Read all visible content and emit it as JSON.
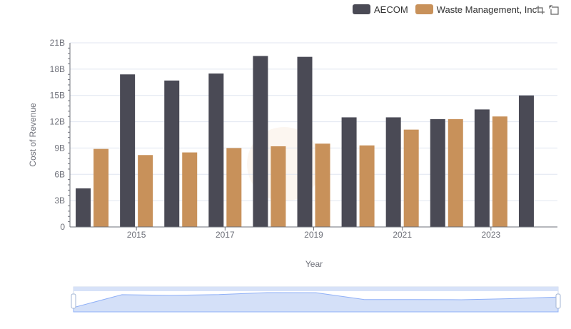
{
  "chart_data": {
    "type": "bar",
    "xlabel": "Year",
    "ylabel": "Cost of Revenue",
    "categories": [
      "2014",
      "2015",
      "2016",
      "2017",
      "2018",
      "2019",
      "2020",
      "2021",
      "2022",
      "2023",
      "2024"
    ],
    "x_tick_labels": [
      "2015",
      "2017",
      "2019",
      "2021",
      "2023"
    ],
    "y_tick_labels": [
      "0",
      "3B",
      "6B",
      "9B",
      "12B",
      "15B",
      "18B",
      "21B"
    ],
    "ylim": [
      0,
      21
    ],
    "y_unit": "billions",
    "grid": true,
    "legend_position": "top-right",
    "series": [
      {
        "name": "AECOM",
        "color": "#4a4a55",
        "values": [
          4.4,
          17.4,
          16.7,
          17.5,
          19.5,
          19.4,
          12.5,
          12.5,
          12.3,
          13.4,
          15.0
        ]
      },
      {
        "name": "Waste Management, Inc.",
        "color": "#c8915a",
        "values": [
          8.9,
          8.2,
          8.5,
          9.0,
          9.2,
          9.5,
          9.3,
          11.1,
          12.3,
          12.6,
          null
        ]
      }
    ]
  },
  "toolbox": {
    "icons": [
      "zoom-icon",
      "restore-icon"
    ]
  }
}
